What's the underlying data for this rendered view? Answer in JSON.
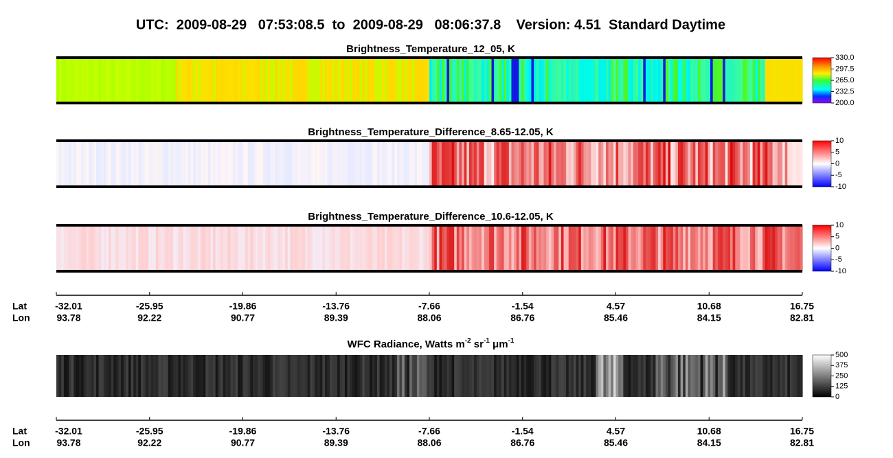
{
  "title": "UTC:  2009-08-29   07:53:08.5  to  2009-08-29   08:06:37.8    Version: 4.51  Standard Daytime",
  "panels": [
    {
      "title": "Brightness_Temperature_12_05, K",
      "colorbar": [
        "330.0",
        "297.5",
        "265.0",
        "232.5",
        "200.0"
      ]
    },
    {
      "title": "Brightness_Temperature_Difference_8.65-12.05, K",
      "colorbar": [
        "10",
        "5",
        "0",
        "-5",
        "-10"
      ]
    },
    {
      "title": "Brightness_Temperature_Difference_10.6-12.05, K",
      "colorbar": [
        "10",
        "5",
        "0",
        "-5",
        "-10"
      ]
    }
  ],
  "wfc": {
    "title_parts": [
      "WFC Radiance, Watts m",
      "-2",
      " sr",
      "-1",
      " μm",
      "-1"
    ],
    "colorbar": [
      "500",
      "375",
      "250",
      "125",
      "0"
    ]
  },
  "axis": {
    "lat_label": "Lat",
    "lon_label": "Lon",
    "lat": [
      "-32.01",
      "-25.95",
      "-19.86",
      "-13.76",
      "-7.66",
      "-1.54",
      "4.57",
      "10.68",
      "16.75"
    ],
    "lon": [
      "93.78",
      "92.22",
      "90.77",
      "89.39",
      "88.06",
      "86.76",
      "85.46",
      "84.15",
      "82.81"
    ]
  }
}
